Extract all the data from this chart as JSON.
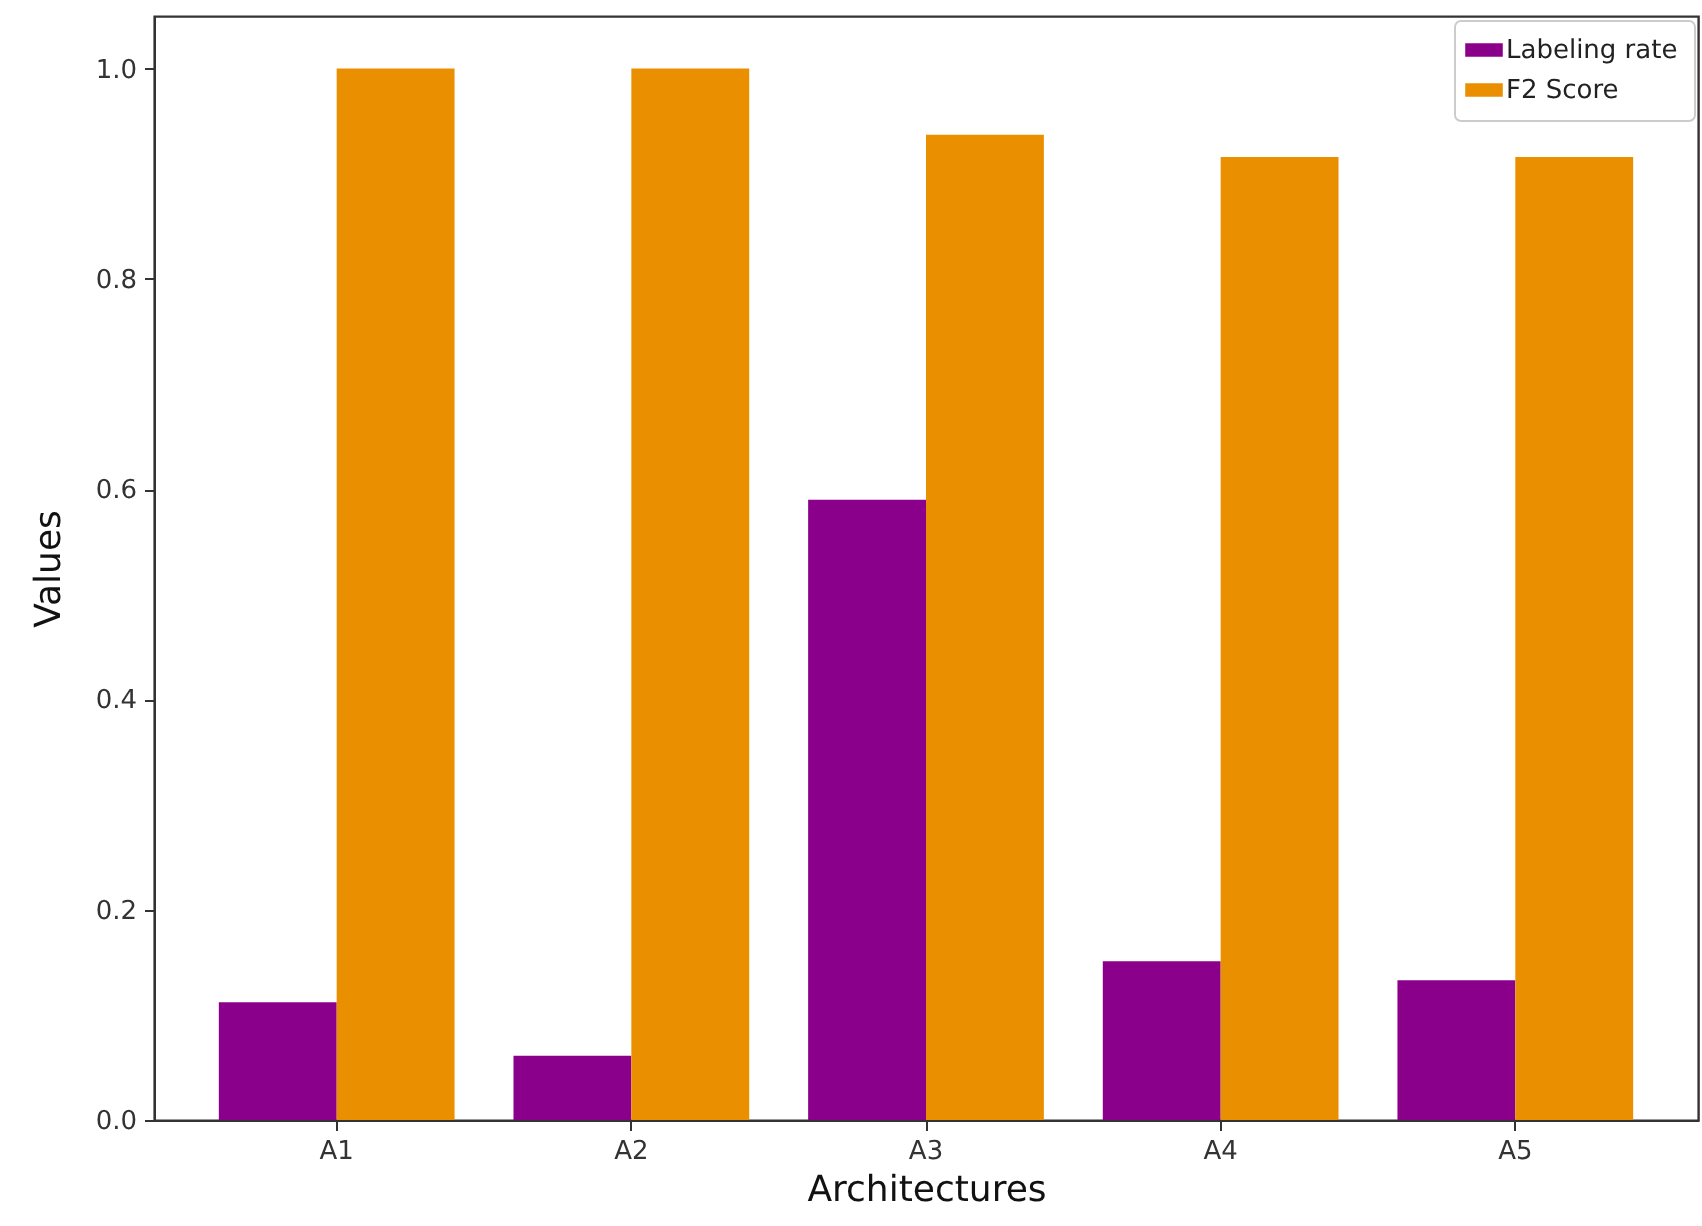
{
  "chart_data": {
    "type": "bar",
    "xlabel": "Architectures",
    "ylabel": "Values",
    "categories": [
      "A1",
      "A2",
      "A3",
      "A4",
      "A5"
    ],
    "series": [
      {
        "name": "Labeling rate",
        "color": "#8b008b",
        "values": [
          0.112,
          0.061,
          0.59,
          0.151,
          0.133
        ]
      },
      {
        "name": "F2 Score",
        "color": "#ea9000",
        "values": [
          1.0,
          1.0,
          0.937,
          0.916,
          0.916
        ]
      }
    ],
    "ylim": [
      0,
      1.05
    ],
    "yticks": [
      {
        "value": 0,
        "label": "0.0"
      },
      0.2,
      0.4,
      0.6,
      0.8,
      {
        "value": 1,
        "label": "1.0"
      }
    ],
    "grid": false,
    "legend": "top right"
  }
}
